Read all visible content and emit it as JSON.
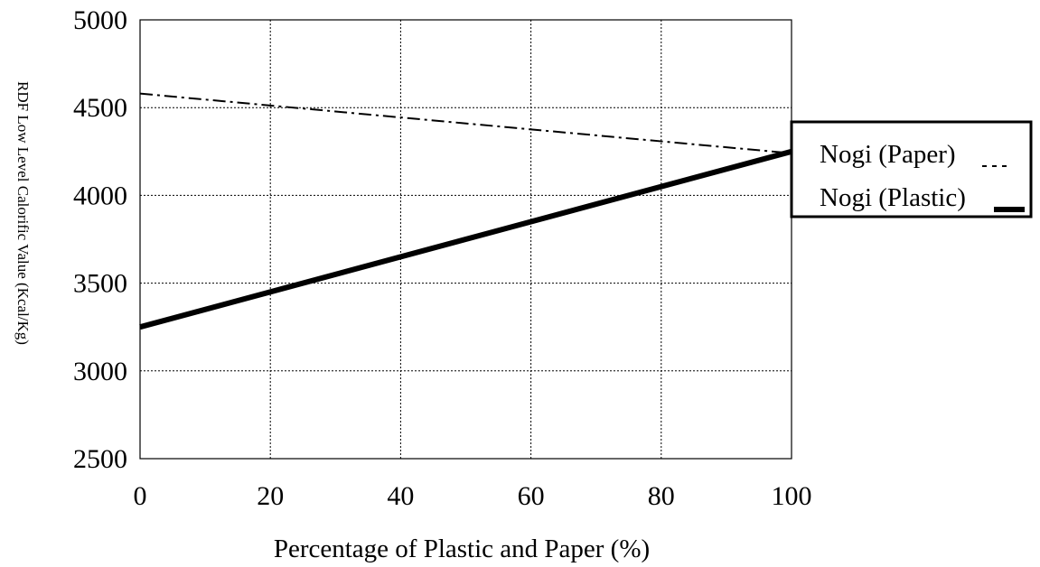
{
  "chart_data": {
    "type": "line",
    "xlabel": "Percentage of Plastic and Paper (%)",
    "ylabel": "RDF Low Level Calorific Value (Kcal/Kg)",
    "xlim": [
      0,
      100
    ],
    "ylim": [
      2500,
      5000
    ],
    "x_ticks": [
      "0",
      "20",
      "40",
      "60",
      "80",
      "100"
    ],
    "y_ticks": [
      "2500",
      "3000",
      "3500",
      "4000",
      "4500",
      "5000"
    ],
    "grid": true,
    "legend_position": "right",
    "series": [
      {
        "name": "Nogi (Paper)",
        "style": "dash-dot",
        "color": "#000000",
        "x": [
          0,
          100
        ],
        "y": [
          4580,
          4240
        ]
      },
      {
        "name": "Nogi (Plastic)",
        "style": "solid-thick",
        "color": "#000000",
        "x": [
          0,
          100
        ],
        "y": [
          3250,
          4250
        ]
      }
    ]
  }
}
